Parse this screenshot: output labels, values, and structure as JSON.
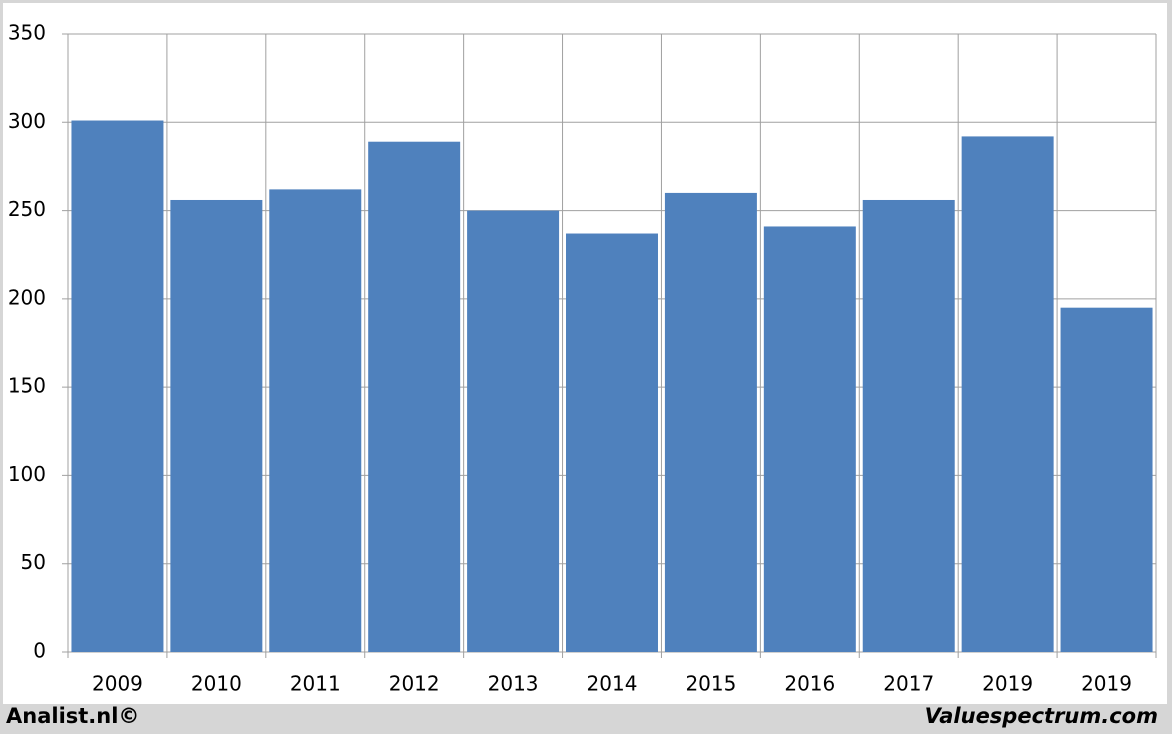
{
  "chart_data": {
    "type": "bar",
    "categories": [
      "2009",
      "2010",
      "2011",
      "2012",
      "2013",
      "2014",
      "2015",
      "2016",
      "2017",
      "2019",
      "2019"
    ],
    "values": [
      301,
      256,
      262,
      289,
      250,
      237,
      260,
      241,
      256,
      292,
      195
    ],
    "color": "#4f81bd",
    "ylim": [
      0,
      350
    ],
    "yticks": [
      0,
      50,
      100,
      150,
      200,
      250,
      300,
      350
    ],
    "grid": true
  },
  "footer": {
    "left": "Analist.nl©",
    "right": "Valuespectrum.com"
  }
}
